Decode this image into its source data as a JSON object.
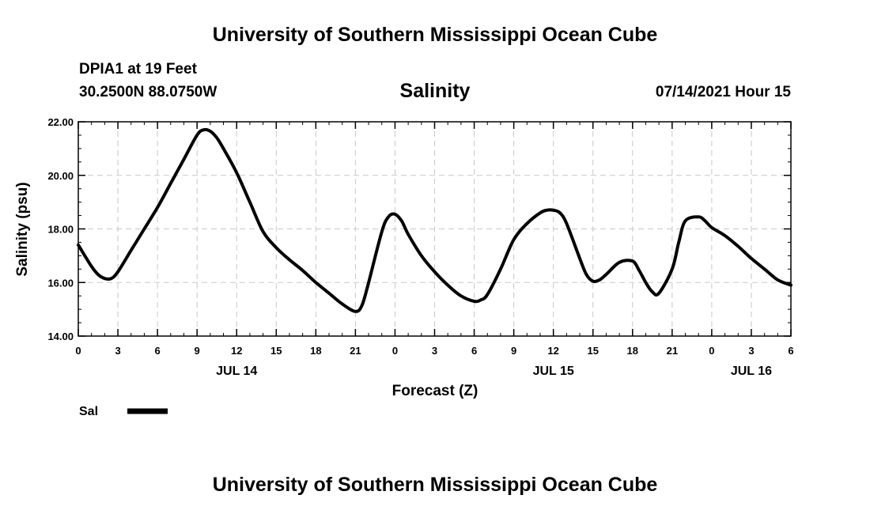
{
  "header": {
    "title": "University of Southern Mississippi Ocean Cube",
    "station": "DPIA1 at 19 Feet",
    "coords": "30.2500N  88.0750W",
    "plot_title": "Salinity",
    "datetime": "07/14/2021 Hour 15"
  },
  "footer": {
    "title": "University of Southern Mississippi Ocean Cube"
  },
  "colors": {
    "line": "#000000",
    "grid": "#c8c8c8",
    "axis": "#000000"
  },
  "chart_data": {
    "type": "line",
    "title": "Salinity",
    "xlabel": "Forecast (Z)",
    "ylabel": "Salinity (psu)",
    "xlim": [
      0,
      54
    ],
    "ylim": [
      14,
      22
    ],
    "y_ticks": [
      14,
      16,
      18,
      20,
      22
    ],
    "y_tick_labels": [
      "14.00",
      "16.00",
      "18.00",
      "20.00",
      "22.00"
    ],
    "x_ticks": [
      0,
      3,
      6,
      9,
      12,
      15,
      18,
      21,
      24,
      27,
      30,
      33,
      36,
      39,
      42,
      45,
      48,
      51,
      54
    ],
    "x_tick_labels": [
      "0",
      "3",
      "6",
      "9",
      "12",
      "15",
      "18",
      "21",
      "0",
      "3",
      "6",
      "9",
      "12",
      "15",
      "18",
      "21",
      "0",
      "3",
      "6"
    ],
    "day_labels": [
      {
        "x": 12,
        "label": "JUL 14"
      },
      {
        "x": 36,
        "label": "JUL 15"
      },
      {
        "x": 51,
        "label": "JUL 16"
      }
    ],
    "grid": true,
    "legend": {
      "position": "bottom-left",
      "entries": [
        "Sal"
      ]
    },
    "series": [
      {
        "name": "Sal",
        "x": [
          0,
          1,
          1.5,
          2,
          2.5,
          3,
          4,
          5,
          6,
          7,
          8,
          9,
          9.5,
          10,
          10.5,
          11,
          12,
          13,
          14,
          15,
          16,
          17,
          18,
          19,
          20,
          21,
          21.5,
          22,
          23,
          23.5,
          24,
          24.5,
          25,
          26,
          27,
          28,
          29,
          30,
          30.5,
          31,
          32,
          33,
          34,
          35,
          35.5,
          36,
          36.5,
          37,
          38,
          38.5,
          39,
          39.5,
          40,
          41,
          42,
          42.5,
          43,
          43.5,
          44,
          45,
          45.5,
          46,
          47,
          47.5,
          48,
          49,
          50,
          51,
          52,
          53,
          54
        ],
        "y": [
          17.4,
          16.6,
          16.3,
          16.15,
          16.15,
          16.4,
          17.2,
          18.0,
          18.8,
          19.7,
          20.6,
          21.5,
          21.7,
          21.65,
          21.4,
          21.0,
          20.1,
          19.0,
          17.9,
          17.3,
          16.85,
          16.45,
          16.0,
          15.6,
          15.2,
          14.92,
          15.15,
          16.0,
          17.9,
          18.45,
          18.55,
          18.3,
          17.8,
          17.0,
          16.4,
          15.9,
          15.5,
          15.3,
          15.35,
          15.55,
          16.5,
          17.6,
          18.2,
          18.6,
          18.7,
          18.7,
          18.6,
          18.2,
          16.9,
          16.3,
          16.05,
          16.1,
          16.3,
          16.75,
          16.8,
          16.45,
          16.0,
          15.65,
          15.6,
          16.5,
          17.5,
          18.3,
          18.45,
          18.3,
          18.05,
          17.75,
          17.35,
          16.9,
          16.5,
          16.1,
          15.9
        ]
      }
    ]
  }
}
